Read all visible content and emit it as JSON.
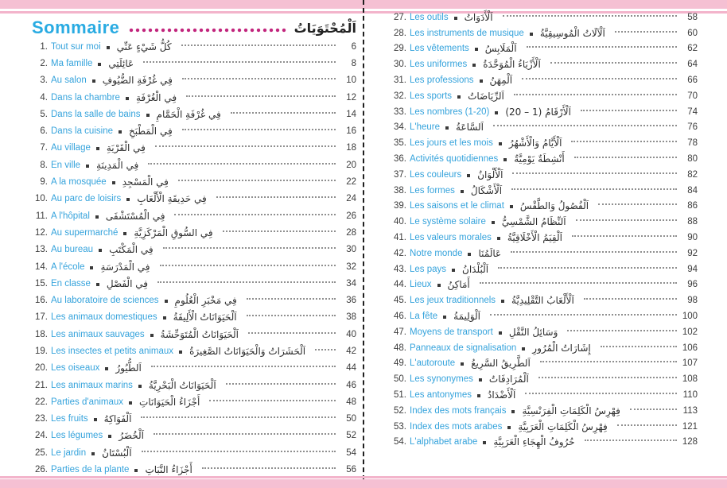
{
  "header": {
    "title_fr": "Sommaire",
    "title_ar": "اَلْمُحْتَوَيَاتُ"
  },
  "colors": {
    "french_text": "#35a3dc",
    "title_text": "#29abe2",
    "title_dots": "#c2267d",
    "pink_band": "#f5c0d3",
    "body_text": "#3c3c3c"
  },
  "pages": {
    "left": {
      "entries": [
        {
          "num": "1.",
          "fr": "Tout sur moi",
          "ar": "كُلُّ شَيْءٍ عَنِّي",
          "page": "6"
        },
        {
          "num": "2.",
          "fr": "Ma famille",
          "ar": "عَائِلَتِي",
          "page": "8"
        },
        {
          "num": "3.",
          "fr": "Au salon",
          "ar": "فِي غُرْفَةِ الضُّيُوفِ",
          "page": "10"
        },
        {
          "num": "4.",
          "fr": "Dans la chambre",
          "ar": "فِي الْغُرْفَةِ",
          "page": "12"
        },
        {
          "num": "5.",
          "fr": "Dans la salle de bains",
          "ar": "فِي غُرْفَةِ الْحَمَّامِ",
          "page": "14"
        },
        {
          "num": "6.",
          "fr": "Dans la cuisine",
          "ar": "فِي الْمَطْبَخِ",
          "page": "16"
        },
        {
          "num": "7.",
          "fr": "Au village",
          "ar": "فِي الْقَرْيَةِ",
          "page": "18"
        },
        {
          "num": "8.",
          "fr": "En ville",
          "ar": "فِي الْمَدِينَةِ",
          "page": "20"
        },
        {
          "num": "9.",
          "fr": "A la mosquée",
          "ar": "فِي الْمَسْجِدِ",
          "page": "22"
        },
        {
          "num": "10.",
          "fr": "Au parc de loisirs",
          "ar": "فِي حَدِيقَةِ الْأَلْعَابِ",
          "page": "24"
        },
        {
          "num": "11.",
          "fr": "A l'hôpital",
          "ar": "فِي الْمُسْتَشْفَى",
          "page": "26"
        },
        {
          "num": "12.",
          "fr": "Au supermarché",
          "ar": "فِي السُّوقِ الْمَرْكَزِيَّةِ",
          "page": "28"
        },
        {
          "num": "13.",
          "fr": "Au bureau",
          "ar": "فِي الْمَكْتَبِ",
          "page": "30"
        },
        {
          "num": "14.",
          "fr": "A l'école",
          "ar": "فِي الْمَدْرَسَةِ",
          "page": "32"
        },
        {
          "num": "15.",
          "fr": "En classe",
          "ar": "فِي الْفَصْلِ",
          "page": "34"
        },
        {
          "num": "16.",
          "fr": "Au laboratoire de sciences",
          "ar": "فِي مَخْبَرِ الْعُلُومِ",
          "page": "36"
        },
        {
          "num": "17.",
          "fr": "Les animaux domestiques",
          "ar": "اَلْحَيَوَانَاتُ الْأَلِيفَةُ",
          "page": "38"
        },
        {
          "num": "18.",
          "fr": "Les animaux sauvages",
          "ar": "اَلْحَيَوَانَاتُ الْمُتَوَحِّشَةُ",
          "page": "40"
        },
        {
          "num": "19.",
          "fr": "Les insectes et petits animaux",
          "ar": "اَلْحَشَرَاتُ وَالْحَيَوَانَاتُ الصَّغِيرَةُ",
          "page": "42"
        },
        {
          "num": "20.",
          "fr": "Les oiseaux",
          "ar": "اَلطُّيُورُ",
          "page": "44"
        },
        {
          "num": "21.",
          "fr": "Les animaux marins",
          "ar": "اَلْحَيَوَانَاتُ الْبَحْرِيَّةُ",
          "page": "46"
        },
        {
          "num": "22.",
          "fr": "Parties d'animaux",
          "ar": "أَجْزَاءُ الْحَيَوَانَاتِ",
          "page": "48"
        },
        {
          "num": "23.",
          "fr": "Les fruits",
          "ar": "اَلْفَوَاكِهُ",
          "page": "50"
        },
        {
          "num": "24.",
          "fr": "Les légumes",
          "ar": "اَلْخُضَرُ",
          "page": "52"
        },
        {
          "num": "25.",
          "fr": "Le jardin",
          "ar": "اَلْبُسْتَانُ",
          "page": "54"
        },
        {
          "num": "26.",
          "fr": "Parties de la plante",
          "ar": "أَجْزَاءُ النَّبَاتِ",
          "page": "56"
        }
      ]
    },
    "right": {
      "entries": [
        {
          "num": "27.",
          "fr": "Les outils",
          "ar": "اَلْأَدَوَاتُ",
          "page": "58"
        },
        {
          "num": "28.",
          "fr": "Les instruments de musique",
          "ar": "اَلْآلَاتُ الْمُوسِيقِيَّةُ",
          "page": "60"
        },
        {
          "num": "29.",
          "fr": "Les vêtements",
          "ar": "اَلْمَلَابِسُ",
          "page": "62"
        },
        {
          "num": "30.",
          "fr": "Les uniformes",
          "ar": "اَلْأَزْيَاءُ الْمُوَحَّدَةُ",
          "page": "64"
        },
        {
          "num": "31.",
          "fr": "Les professions",
          "ar": "اَلْمِهَنُ",
          "page": "66"
        },
        {
          "num": "32.",
          "fr": "Les sports",
          "ar": "اَلرِّيَاضَاتُ",
          "page": "70"
        },
        {
          "num": "33.",
          "fr": "Les nombres (1-20)",
          "ar": "اَلْأَرْقَامُ (1 – 20)",
          "page": "74"
        },
        {
          "num": "34.",
          "fr": "L'heure",
          "ar": "اَلسَّاعَةُ",
          "page": "76"
        },
        {
          "num": "35.",
          "fr": "Les jours et les mois",
          "ar": "اَلْأَيَّامُ وَالْأَشْهُرُ",
          "page": "78"
        },
        {
          "num": "36.",
          "fr": "Activités quotidiennes",
          "ar": "أَنْشِطَةٌ يَوْمِيَّةٌ",
          "page": "80"
        },
        {
          "num": "37.",
          "fr": "Les couleurs",
          "ar": "اَلْأَلْوَانُ",
          "page": "82"
        },
        {
          "num": "38.",
          "fr": "Les formes",
          "ar": "اَلْأَشْكَالُ",
          "page": "84"
        },
        {
          "num": "39.",
          "fr": "Les saisons et le climat",
          "ar": "اَلْفُصُولُ وَالطَّقْسُ",
          "page": "86"
        },
        {
          "num": "40.",
          "fr": "Le système solaire",
          "ar": "اَلنِّظَامُ الشَّمْسِيُّ",
          "page": "88"
        },
        {
          "num": "41.",
          "fr": "Les valeurs morales",
          "ar": "اَلْقِيَمُ الْأَخْلَاقِيَّةُ",
          "page": "90"
        },
        {
          "num": "42.",
          "fr": "Notre monde",
          "ar": "عَالَمُنَا",
          "page": "92"
        },
        {
          "num": "43.",
          "fr": "Les pays",
          "ar": "اَلْبُلْدَانُ",
          "page": "94"
        },
        {
          "num": "44.",
          "fr": "Lieux",
          "ar": "أَمَاكِنُ",
          "page": "96"
        },
        {
          "num": "45.",
          "fr": "Les jeux traditionnels",
          "ar": "اَلْأَلْعَابُ التَّقْلِيدِيَّةُ",
          "page": "98"
        },
        {
          "num": "46.",
          "fr": "La fête",
          "ar": "اَلْوَلِيمَةُ",
          "page": "100"
        },
        {
          "num": "47.",
          "fr": "Moyens de transport",
          "ar": "وَسَائِلُ النَّقْلِ",
          "page": "102"
        },
        {
          "num": "48.",
          "fr": "Panneaux de signalisation",
          "ar": "إِشَارَاتُ الْمُرُورِ",
          "page": "106"
        },
        {
          "num": "49.",
          "fr": "L'autoroute",
          "ar": "اَلطَّرِيقُ السَّرِيعُ",
          "page": "107"
        },
        {
          "num": "50.",
          "fr": "Les synonymes",
          "ar": "اَلْمُرَادِفَاتُ",
          "page": "108"
        },
        {
          "num": "51.",
          "fr": "Les antonymes",
          "ar": "اَلْأَضْدَادُ",
          "page": "110"
        },
        {
          "num": "52.",
          "fr": "Index des mots français",
          "ar": "فِهْرِسُ الْكَلِمَاتِ الْفِرَنْسِيَّةِ",
          "page": "113"
        },
        {
          "num": "53.",
          "fr": "Index des mots arabes",
          "ar": "فِهْرِسُ الْكَلِمَاتِ الْعَرَبِيَّةِ",
          "page": "121"
        },
        {
          "num": "54.",
          "fr": "L'alphabet arabe",
          "ar": "حُرُوفُ الْهِجَاءِ الْعَرَبِيَّةِ",
          "page": "128"
        }
      ]
    }
  }
}
